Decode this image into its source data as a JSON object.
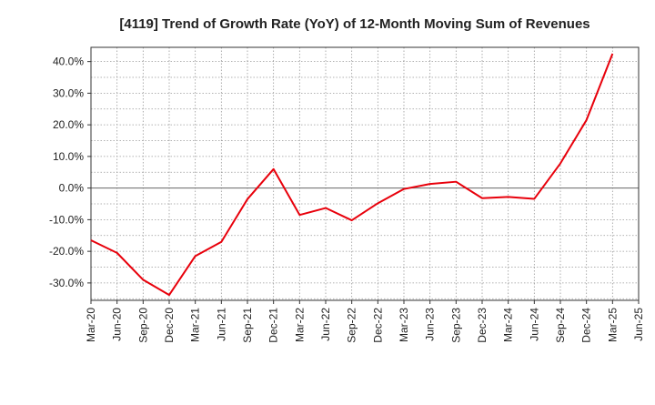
{
  "chart_data": {
    "type": "line",
    "title": "[4119]  Trend of Growth Rate (YoY) of 12-Month Moving Sum of Revenues",
    "xlabel": "",
    "ylabel": "",
    "x_ticks": [
      "Mar-20",
      "Jun-20",
      "Sep-20",
      "Dec-20",
      "Mar-21",
      "Jun-21",
      "Sep-21",
      "Dec-21",
      "Mar-22",
      "Jun-22",
      "Sep-22",
      "Dec-22",
      "Mar-23",
      "Jun-23",
      "Sep-23",
      "Dec-23",
      "Mar-24",
      "Jun-24",
      "Sep-24",
      "Dec-24",
      "Mar-25",
      "Jun-25"
    ],
    "y_ticks": [
      40,
      30,
      20,
      10,
      0,
      -10,
      -20,
      -30
    ],
    "y_tick_labels": [
      "40.0%",
      "30.0%",
      "20.0%",
      "10.0%",
      "0.0%",
      "-10.0%",
      "-20.0%",
      "-30.0%"
    ],
    "ylim": [
      -35.5,
      44.5
    ],
    "grid": true,
    "zero_line": true,
    "series": [
      {
        "color": "#e8000b",
        "x": [
          "Mar-20",
          "Jun-20",
          "Sep-20",
          "Dec-20",
          "Mar-21",
          "Jun-21",
          "Sep-21",
          "Dec-21",
          "Mar-22",
          "Jun-22",
          "Sep-22",
          "Dec-22",
          "Mar-23",
          "Jun-23",
          "Sep-23",
          "Dec-23",
          "Mar-24",
          "Jun-24",
          "Sep-24",
          "Dec-24",
          "Mar-25"
        ],
        "values": [
          -16.5,
          -20.5,
          -29.0,
          -33.8,
          -21.5,
          -17.0,
          -3.5,
          6.0,
          -8.5,
          -6.3,
          -10.2,
          -4.8,
          -0.3,
          1.3,
          2.0,
          -3.2,
          -2.8,
          -3.4,
          7.8,
          21.5,
          42.5
        ]
      }
    ]
  }
}
